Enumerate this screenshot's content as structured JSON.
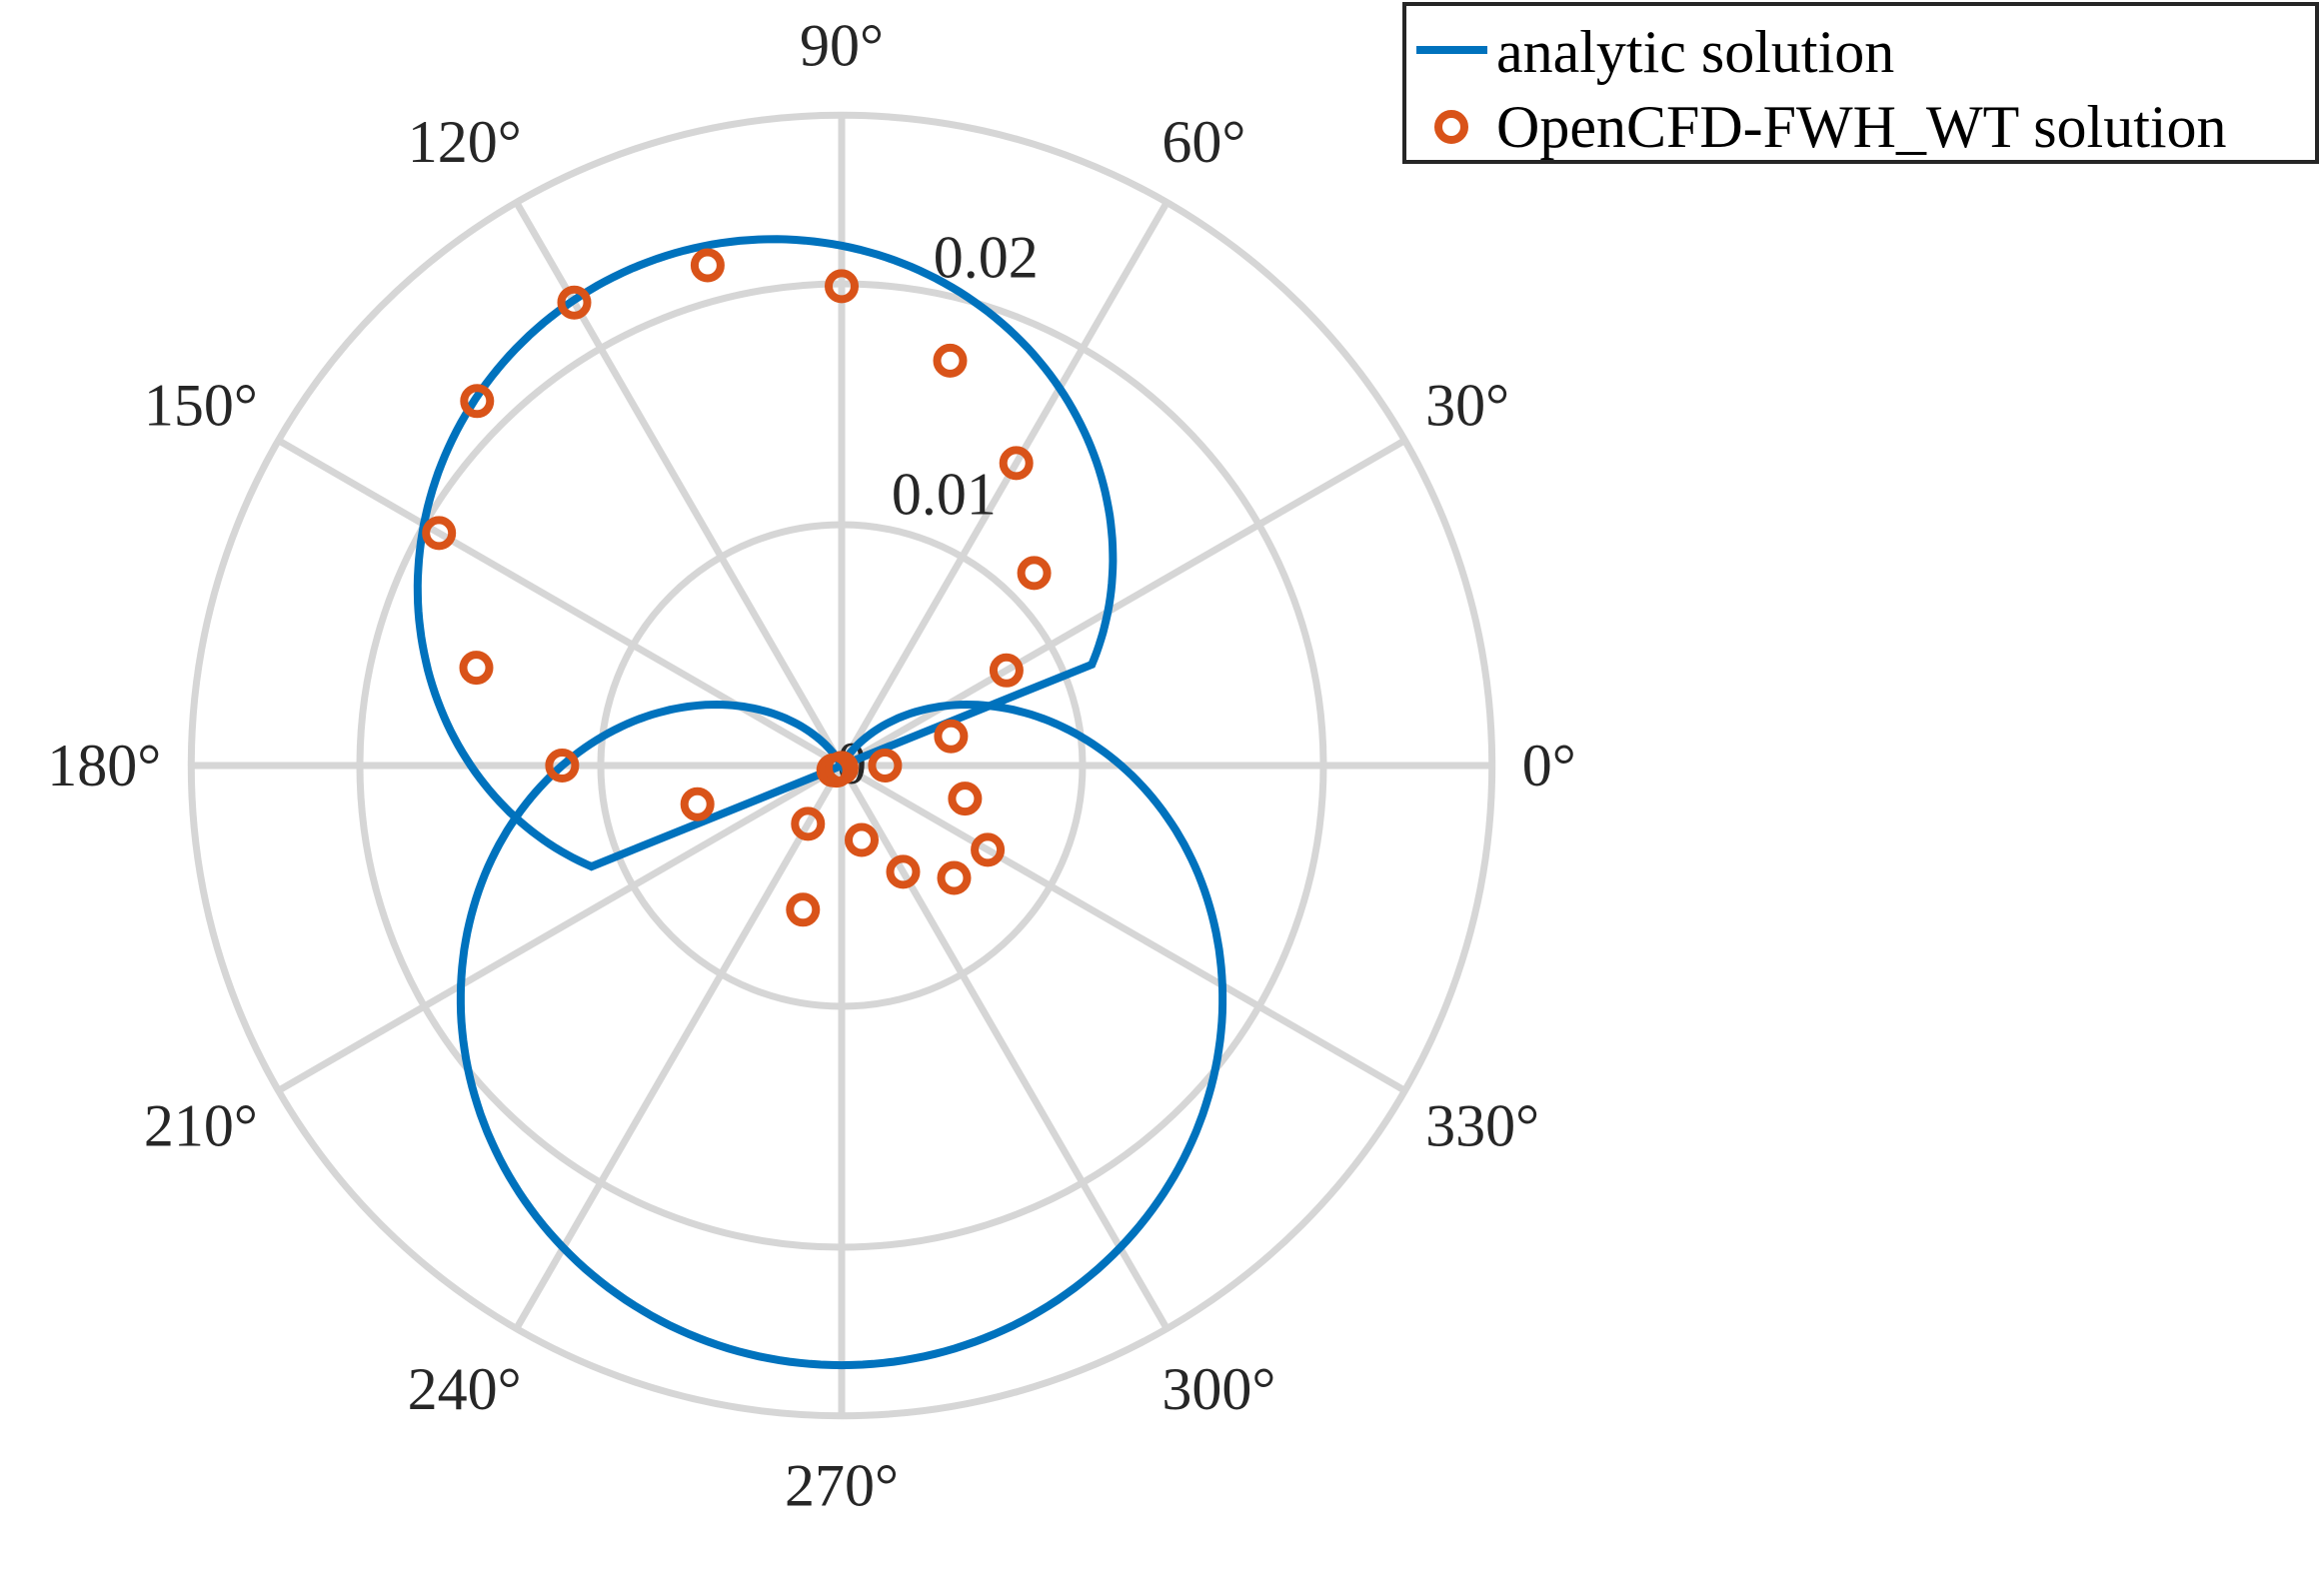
{
  "chart_data": {
    "type": "polar",
    "theta_unit": "degrees",
    "theta_ticks": [
      0,
      30,
      60,
      90,
      120,
      150,
      180,
      210,
      240,
      270,
      300,
      330
    ],
    "theta_tick_labels": [
      "0°",
      "30°",
      "60°",
      "90°",
      "120°",
      "150°",
      "180°",
      "210°",
      "240°",
      "270°",
      "300°",
      "330°"
    ],
    "r_ticks": [
      0,
      0.01,
      0.02
    ],
    "r_tick_labels": [
      "0",
      "0.01",
      "0.02"
    ],
    "rlim": [
      0,
      0.027
    ],
    "grid": true,
    "legend_position": "top-right",
    "series": [
      {
        "name": "analytic solution",
        "style": "line",
        "color": "#0072BD",
        "model": "r = 0.0116 - 0.0133*sin(theta) (lobe at 270° clipped to r ≥ 0, sampled every 1° from 0° to 360°)",
        "r_at_theta": {
          "0": 0.0116,
          "30": 0.005,
          "60": 0.0001,
          "90": 0.0,
          "120": 0.0,
          "150": 0.005,
          "180": 0.0116,
          "210": 0.0183,
          "240": 0.0231,
          "270": 0.0249,
          "300": 0.0231,
          "330": 0.0183
        },
        "lobe_upper_peak_r": 0.0175
      },
      {
        "name": "OpenCFD-FWH_WT solution",
        "style": "marker",
        "marker": "circle",
        "color": "#D95319",
        "theta": [
          0,
          15,
          30,
          45,
          60,
          75,
          90,
          105,
          120,
          135,
          150,
          165,
          180,
          195,
          210,
          225,
          240,
          255,
          270,
          285,
          300,
          315,
          330,
          345
        ],
        "r": [
          0.0018,
          0.0047,
          0.0079,
          0.0113,
          0.0145,
          0.0174,
          0.0199,
          0.0215,
          0.0222,
          0.0214,
          0.0193,
          0.0157,
          0.0116,
          0.0062,
          0.0004,
          0.0003,
          0.0028,
          0.0062,
          0.0001,
          0.0032,
          0.0051,
          0.0066,
          0.007,
          0.0053
        ]
      }
    ]
  }
}
